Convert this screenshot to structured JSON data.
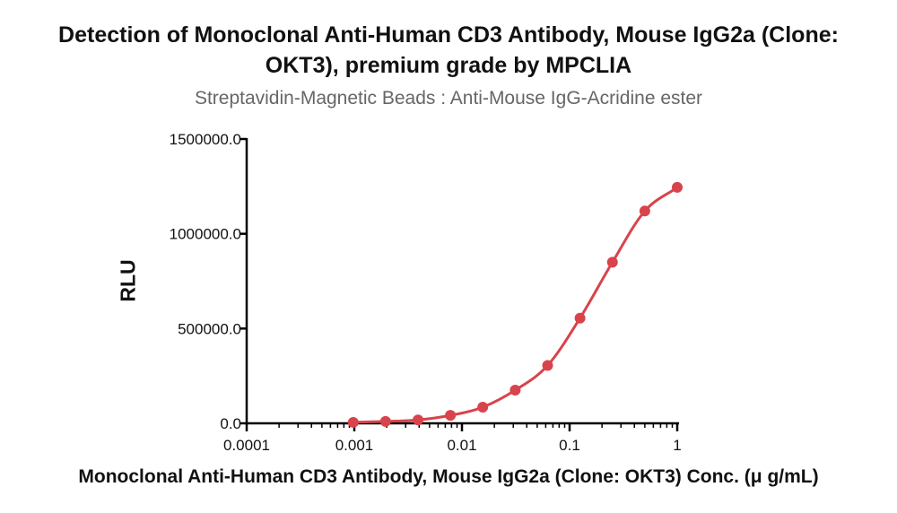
{
  "chart_data": {
    "type": "scatter",
    "title_line1": "Detection of Monoclonal Anti-Human CD3 Antibody, Mouse IgG2a (Clone:",
    "title_line2": "OKT3), premium grade by MPCLIA",
    "subtitle": "Streptavidin-Magnetic Beads : Anti-Mouse IgG-Acridine ester",
    "xlabel": "Monoclonal Anti-Human CD3 Antibody, Mouse IgG2a (Clone: OKT3) Conc. (μ g/mL)",
    "ylabel": "RLU",
    "x_scale": "log",
    "xlim": [
      0.0001,
      1
    ],
    "ylim": [
      0,
      1500000
    ],
    "x_ticks": [
      0.0001,
      0.001,
      0.01,
      0.1,
      1
    ],
    "x_tick_labels": [
      "0.0001",
      "0.001",
      "0.01",
      "0.1",
      "1"
    ],
    "y_ticks": [
      0,
      500000,
      1000000,
      1500000
    ],
    "y_tick_labels": [
      "0.0",
      "500000.0",
      "1000000.0",
      "1500000.0"
    ],
    "series": [
      {
        "color": "#d9434b",
        "x": [
          0.000977,
          0.00195,
          0.00391,
          0.00781,
          0.0156,
          0.03125,
          0.0625,
          0.125,
          0.25,
          0.5,
          1
        ],
        "y": [
          5000,
          10000,
          18000,
          42000,
          85000,
          175000,
          305000,
          555000,
          850000,
          1120000,
          1245000
        ]
      }
    ]
  }
}
